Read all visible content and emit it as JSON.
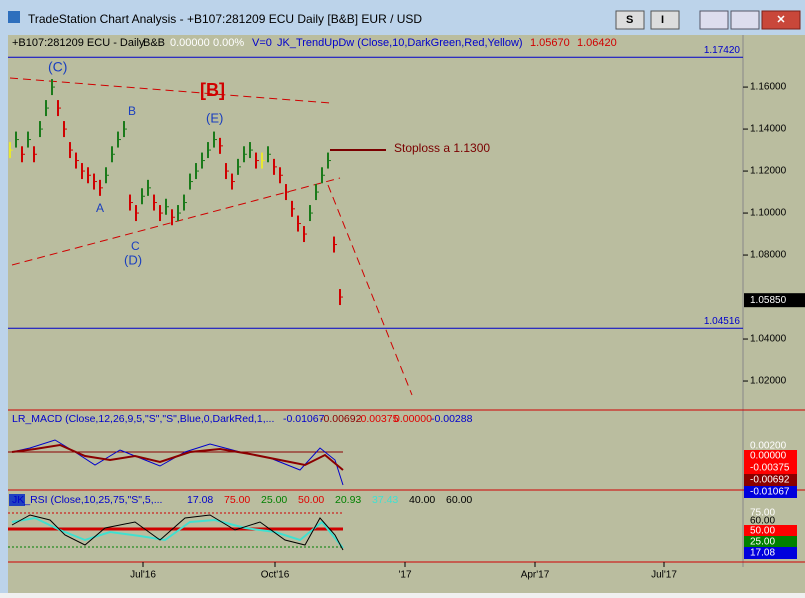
{
  "window": {
    "title": "TradeStation Chart Analysis - +B107:281209 ECU Daily [B&B] EUR / USD",
    "buttons": [
      "S",
      "I"
    ]
  },
  "chart": {
    "header": [
      "+B107:281209 ECU - Daily",
      "B&B",
      "0.00000",
      "0.00%",
      "V=0",
      "JK_TrendUpDw (Close,10,DarkGreen,Red,Yellow)",
      "1.05670",
      "1.06420"
    ],
    "ylim": [
      1.0062,
      1.1848
    ],
    "yticks": [
      {
        "value": 1.16,
        "label": "1.16000"
      },
      {
        "value": 1.14,
        "label": "1.14000"
      },
      {
        "value": 1.12,
        "label": "1.12000"
      },
      {
        "value": 1.1,
        "label": "1.10000"
      },
      {
        "value": 1.08,
        "label": "1.08000"
      },
      {
        "value": 1.04,
        "label": "1.04000"
      },
      {
        "value": 1.02,
        "label": "1.02000"
      }
    ],
    "levels": [
      {
        "value": 1.1742,
        "label": "1.17420"
      },
      {
        "value": 1.04516,
        "label": "1.04516"
      }
    ],
    "last": {
      "value": 1.0585,
      "label": "1.05850"
    },
    "closes": [
      1.13,
      1.135,
      1.128,
      1.135,
      1.128,
      1.14,
      1.15,
      1.16,
      1.15,
      1.14,
      1.13,
      1.125,
      1.12,
      1.118,
      1.115,
      1.112,
      1.118,
      1.128,
      1.135,
      1.14,
      1.105,
      1.1,
      1.108,
      1.112,
      1.105,
      1.1,
      1.103,
      1.098,
      1.1,
      1.105,
      1.115,
      1.12,
      1.125,
      1.13,
      1.135,
      1.132,
      1.12,
      1.115,
      1.122,
      1.128,
      1.13,
      1.125,
      1.125,
      1.128,
      1.122,
      1.118,
      1.11,
      1.102,
      1.095,
      1.09,
      1.1,
      1.11,
      1.118,
      1.125,
      1.085,
      1.06
    ],
    "annotations": [
      "(C)",
      "B",
      "A",
      "C",
      "(D)",
      "(E)",
      "[B]",
      "Stoploss a 1.1300"
    ],
    "x_labels": [
      "Jul'16",
      "Oct'16",
      "'17",
      "Apr'17",
      "Jul'17"
    ]
  },
  "macd": {
    "label": "LR_MACD (Close,12,26,9,5,\"S\",\"S\",Blue,0,DarkRed,1,...",
    "values": [
      {
        "text": "-0.01067",
        "color": "#0000cc"
      },
      {
        "text": "-0.00692",
        "color": "#8b0000"
      },
      {
        "text": "-0.00375",
        "color": "#e00000"
      },
      {
        "text": "0.00000",
        "color": "#e00000"
      },
      {
        "text": "-0.00288",
        "color": "#0000cc"
      }
    ],
    "axis": [
      {
        "text": "0.00200",
        "color": "#babd9f"
      },
      {
        "text": "0.00000",
        "color": "#ff0000"
      },
      {
        "text": "-0.00375",
        "color": "#ff0000"
      },
      {
        "text": "-0.00692",
        "color": "#8b0000"
      },
      {
        "text": "-0.01067",
        "color": "#0000dd"
      }
    ]
  },
  "rsi": {
    "label": "JK_RSI (Close,10,25,75,\"S\",5,...",
    "values": [
      {
        "text": "17.08",
        "color": "#0000cc"
      },
      {
        "text": "75.00",
        "color": "#e00000"
      },
      {
        "text": "25.00",
        "color": "#008000"
      },
      {
        "text": "50.00",
        "color": "#e00000"
      },
      {
        "text": "20.93",
        "color": "#008000"
      },
      {
        "text": "37.43",
        "color": "#40e0d0"
      },
      {
        "text": "40.00",
        "color": "#000000"
      },
      {
        "text": "60.00",
        "color": "#000000"
      }
    ],
    "axis": [
      {
        "text": "75.00",
        "color": "#ff0000"
      },
      {
        "text": "60.00",
        "color": "#000000"
      },
      {
        "text": "50.00",
        "color": "#ff0000"
      },
      {
        "text": "25.00",
        "color": "#008000"
      },
      {
        "text": "17.08",
        "color": "#0000dd"
      }
    ]
  }
}
